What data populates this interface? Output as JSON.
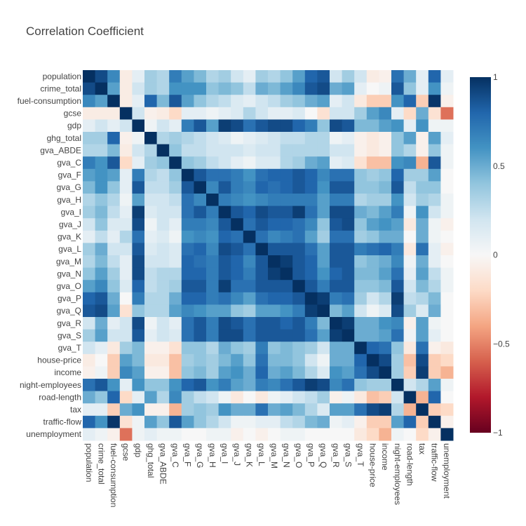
{
  "chart_data": {
    "type": "heatmap",
    "title": "Correlation Coefficient",
    "labels": [
      "population",
      "crime_total",
      "fuel-consumption",
      "gcse",
      "gdp",
      "ghg_total",
      "gva_ABDE",
      "gva_C",
      "gva_F",
      "gva_G",
      "gva_H",
      "gva_I",
      "gva_J",
      "gva_K",
      "gva_L",
      "gva_M",
      "gva_N",
      "gva_O",
      "gva_P",
      "gva_Q",
      "gva_R",
      "gva_S",
      "gva_T",
      "house-price",
      "income",
      "night-employees",
      "road-length",
      "tax",
      "traffic-flow",
      "unemployment"
    ],
    "zmin": -1,
    "zmax": 1,
    "colorscale": "RdBu",
    "colorbar_ticks": [
      {
        "value": 1,
        "label": "1"
      },
      {
        "value": 0.5,
        "label": "0.5"
      },
      {
        "value": 0,
        "label": "0"
      },
      {
        "value": -0.5,
        "label": "−0.5"
      },
      {
        "value": -1,
        "label": "−1"
      }
    ],
    "z": [
      [
        1.0,
        0.9,
        0.65,
        -0.08,
        0.1,
        0.35,
        0.3,
        0.7,
        0.55,
        0.45,
        0.3,
        0.35,
        0.2,
        0.1,
        0.35,
        0.3,
        0.4,
        0.55,
        0.8,
        0.85,
        0.2,
        0.35,
        0.2,
        -0.08,
        -0.05,
        0.75,
        0.5,
        0.1,
        0.8,
        0.1
      ],
      [
        0.9,
        1.0,
        0.55,
        -0.08,
        0.2,
        0.35,
        0.3,
        0.6,
        0.6,
        0.6,
        0.4,
        0.45,
        0.4,
        0.25,
        0.5,
        0.45,
        0.55,
        0.65,
        0.85,
        0.9,
        0.5,
        0.55,
        0.1,
        0.0,
        0.05,
        0.85,
        0.4,
        0.1,
        0.6,
        0.05
      ],
      [
        0.65,
        0.55,
        1.0,
        -0.08,
        0.1,
        0.8,
        0.45,
        0.85,
        0.55,
        0.4,
        0.3,
        0.25,
        0.15,
        0.1,
        0.2,
        0.25,
        0.35,
        0.4,
        0.5,
        0.55,
        0.1,
        0.2,
        -0.1,
        -0.25,
        -0.25,
        0.6,
        0.8,
        -0.25,
        0.98,
        -0.05
      ],
      [
        -0.08,
        -0.08,
        -0.08,
        1.0,
        0.2,
        -0.05,
        -0.08,
        -0.2,
        0.1,
        0.1,
        0.05,
        0.1,
        0.15,
        0.3,
        0.2,
        0.1,
        0.1,
        0.15,
        0.0,
        -0.15,
        0.2,
        0.2,
        0.35,
        0.55,
        0.65,
        0.1,
        -0.2,
        0.5,
        -0.15,
        -0.55
      ],
      [
        0.1,
        0.2,
        0.1,
        0.2,
        1.0,
        0.05,
        0.2,
        0.1,
        0.7,
        0.85,
        0.55,
        0.95,
        0.9,
        0.75,
        0.85,
        0.9,
        0.9,
        0.8,
        0.7,
        0.4,
        0.9,
        0.85,
        0.45,
        0.45,
        0.55,
        0.6,
        0.1,
        0.6,
        0.05,
        0.05
      ],
      [
        0.35,
        0.35,
        0.8,
        -0.05,
        0.05,
        1.0,
        0.3,
        0.35,
        0.3,
        0.25,
        0.2,
        0.15,
        0.05,
        0.1,
        0.15,
        0.2,
        0.25,
        0.25,
        0.3,
        0.3,
        0.05,
        0.1,
        -0.05,
        -0.1,
        -0.05,
        0.4,
        0.55,
        -0.05,
        0.55,
        0.1
      ],
      [
        0.3,
        0.3,
        0.45,
        -0.08,
        0.2,
        0.3,
        1.0,
        0.4,
        0.25,
        0.25,
        0.2,
        0.2,
        0.2,
        0.15,
        0.2,
        0.2,
        0.3,
        0.3,
        0.3,
        0.3,
        0.2,
        0.2,
        -0.05,
        -0.1,
        -0.05,
        0.4,
        0.3,
        -0.05,
        0.4,
        0.05
      ],
      [
        0.7,
        0.6,
        0.85,
        -0.2,
        0.1,
        0.35,
        0.4,
        1.0,
        0.4,
        0.35,
        0.25,
        0.2,
        0.1,
        0.05,
        0.15,
        0.15,
        0.3,
        0.35,
        0.5,
        0.55,
        0.1,
        0.15,
        -0.15,
        -0.3,
        -0.3,
        0.6,
        0.65,
        -0.35,
        0.85,
        0.05
      ],
      [
        0.55,
        0.6,
        0.55,
        0.1,
        0.7,
        0.3,
        0.25,
        0.4,
        1.0,
        0.85,
        0.75,
        0.75,
        0.7,
        0.6,
        0.75,
        0.8,
        0.8,
        0.85,
        0.8,
        0.65,
        0.75,
        0.75,
        0.4,
        0.35,
        0.4,
        0.8,
        0.35,
        0.35,
        0.55,
        0.0
      ],
      [
        0.45,
        0.6,
        0.4,
        0.1,
        0.85,
        0.25,
        0.25,
        0.35,
        0.85,
        1.0,
        0.65,
        0.85,
        0.7,
        0.65,
        0.8,
        0.75,
        0.8,
        0.85,
        0.8,
        0.6,
        0.85,
        0.85,
        0.4,
        0.4,
        0.45,
        0.85,
        0.25,
        0.4,
        0.4,
        0.0
      ],
      [
        0.3,
        0.4,
        0.3,
        0.05,
        0.55,
        0.2,
        0.2,
        0.25,
        0.75,
        0.65,
        1.0,
        0.7,
        0.65,
        0.6,
        0.65,
        0.7,
        0.7,
        0.7,
        0.7,
        0.55,
        0.7,
        0.7,
        0.3,
        0.35,
        0.35,
        0.6,
        0.2,
        0.35,
        0.3,
        0.05
      ],
      [
        0.35,
        0.45,
        0.25,
        0.1,
        0.95,
        0.15,
        0.2,
        0.2,
        0.75,
        0.85,
        0.7,
        1.0,
        0.85,
        0.8,
        0.9,
        0.85,
        0.85,
        0.95,
        0.75,
        0.55,
        0.9,
        0.9,
        0.5,
        0.45,
        0.55,
        0.7,
        0.05,
        0.6,
        0.2,
        0.05
      ],
      [
        0.2,
        0.4,
        0.15,
        0.15,
        0.9,
        0.05,
        0.2,
        0.1,
        0.7,
        0.7,
        0.65,
        0.85,
        1.0,
        0.75,
        0.85,
        0.8,
        0.8,
        0.75,
        0.65,
        0.4,
        0.85,
        0.9,
        0.4,
        0.55,
        0.6,
        0.55,
        -0.1,
        0.5,
        0.05,
        -0.05
      ],
      [
        0.1,
        0.25,
        0.1,
        0.3,
        0.75,
        0.1,
        0.15,
        0.05,
        0.6,
        0.65,
        0.6,
        0.8,
        0.75,
        1.0,
        0.75,
        0.65,
        0.7,
        0.75,
        0.55,
        0.35,
        0.75,
        0.75,
        0.35,
        0.4,
        0.5,
        0.5,
        0.0,
        0.5,
        0.05,
        0.0
      ],
      [
        0.35,
        0.5,
        0.2,
        0.2,
        0.85,
        0.15,
        0.2,
        0.15,
        0.75,
        0.8,
        0.65,
        0.9,
        0.85,
        0.75,
        1.0,
        0.85,
        0.85,
        0.85,
        0.75,
        0.55,
        0.85,
        0.85,
        0.7,
        0.75,
        0.8,
        0.7,
        -0.1,
        0.75,
        0.1,
        -0.05
      ],
      [
        0.3,
        0.45,
        0.25,
        0.1,
        0.9,
        0.2,
        0.2,
        0.15,
        0.8,
        0.75,
        0.7,
        0.85,
        0.8,
        0.65,
        0.85,
        1.0,
        0.95,
        0.85,
        0.8,
        0.55,
        0.85,
        0.85,
        0.4,
        0.45,
        0.5,
        0.65,
        0.05,
        0.5,
        0.1,
        0.0
      ],
      [
        0.4,
        0.55,
        0.35,
        0.1,
        0.9,
        0.25,
        0.3,
        0.3,
        0.8,
        0.8,
        0.7,
        0.85,
        0.8,
        0.7,
        0.85,
        0.95,
        1.0,
        0.85,
        0.8,
        0.6,
        0.8,
        0.85,
        0.45,
        0.45,
        0.55,
        0.75,
        0.1,
        0.55,
        0.25,
        0.05
      ],
      [
        0.55,
        0.65,
        0.4,
        0.15,
        0.8,
        0.25,
        0.3,
        0.35,
        0.85,
        0.85,
        0.7,
        0.95,
        0.75,
        0.75,
        0.85,
        0.85,
        0.85,
        1.0,
        0.85,
        0.7,
        0.85,
        0.85,
        0.4,
        0.4,
        0.45,
        0.85,
        0.2,
        0.45,
        0.3,
        0.05
      ],
      [
        0.8,
        0.85,
        0.5,
        0.0,
        0.7,
        0.3,
        0.3,
        0.5,
        0.8,
        0.8,
        0.7,
        0.75,
        0.65,
        0.55,
        0.75,
        0.8,
        0.8,
        0.85,
        1.0,
        0.95,
        0.7,
        0.75,
        0.35,
        0.2,
        0.3,
        0.95,
        0.25,
        0.3,
        0.45,
        0.0
      ],
      [
        0.85,
        0.9,
        0.55,
        -0.15,
        0.4,
        0.3,
        0.3,
        0.55,
        0.65,
        0.6,
        0.55,
        0.55,
        0.4,
        0.35,
        0.55,
        0.55,
        0.6,
        0.7,
        0.95,
        1.0,
        0.45,
        0.55,
        0.2,
        0.05,
        0.15,
        0.9,
        0.35,
        0.15,
        0.5,
        0.0
      ],
      [
        0.2,
        0.5,
        0.1,
        0.2,
        0.9,
        0.05,
        0.2,
        0.1,
        0.75,
        0.85,
        0.7,
        0.9,
        0.85,
        0.75,
        0.85,
        0.85,
        0.8,
        0.85,
        0.7,
        0.45,
        1.0,
        0.95,
        0.5,
        0.5,
        0.6,
        0.65,
        -0.05,
        0.55,
        0.05,
        0.0
      ],
      [
        0.35,
        0.55,
        0.2,
        0.2,
        0.85,
        0.1,
        0.2,
        0.15,
        0.75,
        0.85,
        0.7,
        0.9,
        0.9,
        0.75,
        0.85,
        0.85,
        0.85,
        0.85,
        0.75,
        0.55,
        0.95,
        1.0,
        0.5,
        0.5,
        0.55,
        0.75,
        0.05,
        0.55,
        0.1,
        0.0
      ],
      [
        0.2,
        0.1,
        -0.1,
        0.35,
        0.45,
        -0.05,
        -0.05,
        -0.15,
        0.4,
        0.4,
        0.3,
        0.5,
        0.4,
        0.35,
        0.7,
        0.4,
        0.45,
        0.4,
        0.35,
        0.2,
        0.5,
        0.5,
        1.0,
        0.8,
        0.75,
        0.4,
        -0.1,
        0.75,
        -0.05,
        -0.1
      ],
      [
        -0.08,
        0.0,
        -0.25,
        0.55,
        0.45,
        -0.1,
        -0.1,
        -0.3,
        0.35,
        0.4,
        0.35,
        0.45,
        0.55,
        0.4,
        0.75,
        0.45,
        0.45,
        0.4,
        0.2,
        0.05,
        0.5,
        0.5,
        0.8,
        1.0,
        0.9,
        0.35,
        -0.3,
        0.9,
        -0.25,
        -0.2
      ],
      [
        -0.05,
        0.05,
        -0.25,
        0.65,
        0.55,
        -0.05,
        -0.05,
        -0.3,
        0.4,
        0.45,
        0.35,
        0.55,
        0.6,
        0.5,
        0.8,
        0.5,
        0.55,
        0.45,
        0.3,
        0.15,
        0.6,
        0.55,
        0.75,
        0.9,
        1.0,
        0.35,
        -0.25,
        0.95,
        -0.25,
        -0.35
      ],
      [
        0.75,
        0.85,
        0.6,
        0.1,
        0.6,
        0.4,
        0.4,
        0.6,
        0.8,
        0.85,
        0.6,
        0.7,
        0.55,
        0.5,
        0.7,
        0.65,
        0.75,
        0.85,
        0.95,
        0.9,
        0.65,
        0.75,
        0.4,
        0.35,
        0.35,
        1.0,
        0.2,
        0.3,
        0.55,
        0.05
      ],
      [
        0.5,
        0.4,
        0.8,
        -0.2,
        0.1,
        0.55,
        0.3,
        0.65,
        0.35,
        0.25,
        0.2,
        0.05,
        -0.1,
        0.0,
        -0.1,
        0.05,
        0.1,
        0.2,
        0.25,
        0.35,
        -0.05,
        0.05,
        -0.1,
        -0.3,
        -0.25,
        0.2,
        1.0,
        -0.35,
        0.8,
        0.0
      ],
      [
        0.1,
        0.1,
        -0.25,
        0.5,
        0.6,
        -0.05,
        -0.05,
        -0.35,
        0.35,
        0.4,
        0.35,
        0.6,
        0.5,
        0.5,
        0.75,
        0.5,
        0.55,
        0.45,
        0.3,
        0.15,
        0.55,
        0.55,
        0.75,
        0.9,
        0.95,
        0.3,
        -0.35,
        1.0,
        -0.25,
        -0.2
      ],
      [
        0.8,
        0.6,
        0.98,
        -0.15,
        0.05,
        0.55,
        0.4,
        0.85,
        0.55,
        0.4,
        0.3,
        0.2,
        0.05,
        0.05,
        0.1,
        0.1,
        0.25,
        0.3,
        0.45,
        0.5,
        0.05,
        0.1,
        -0.05,
        -0.25,
        -0.25,
        0.55,
        0.8,
        -0.25,
        1.0,
        -0.05
      ],
      [
        0.1,
        0.05,
        -0.05,
        -0.55,
        0.05,
        0.1,
        0.05,
        0.05,
        0.0,
        0.0,
        0.05,
        0.05,
        -0.05,
        0.0,
        -0.05,
        0.0,
        0.05,
        0.05,
        0.0,
        0.0,
        0.0,
        0.0,
        -0.1,
        -0.2,
        -0.35,
        0.05,
        0.0,
        -0.2,
        -0.05,
        1.0
      ]
    ]
  }
}
